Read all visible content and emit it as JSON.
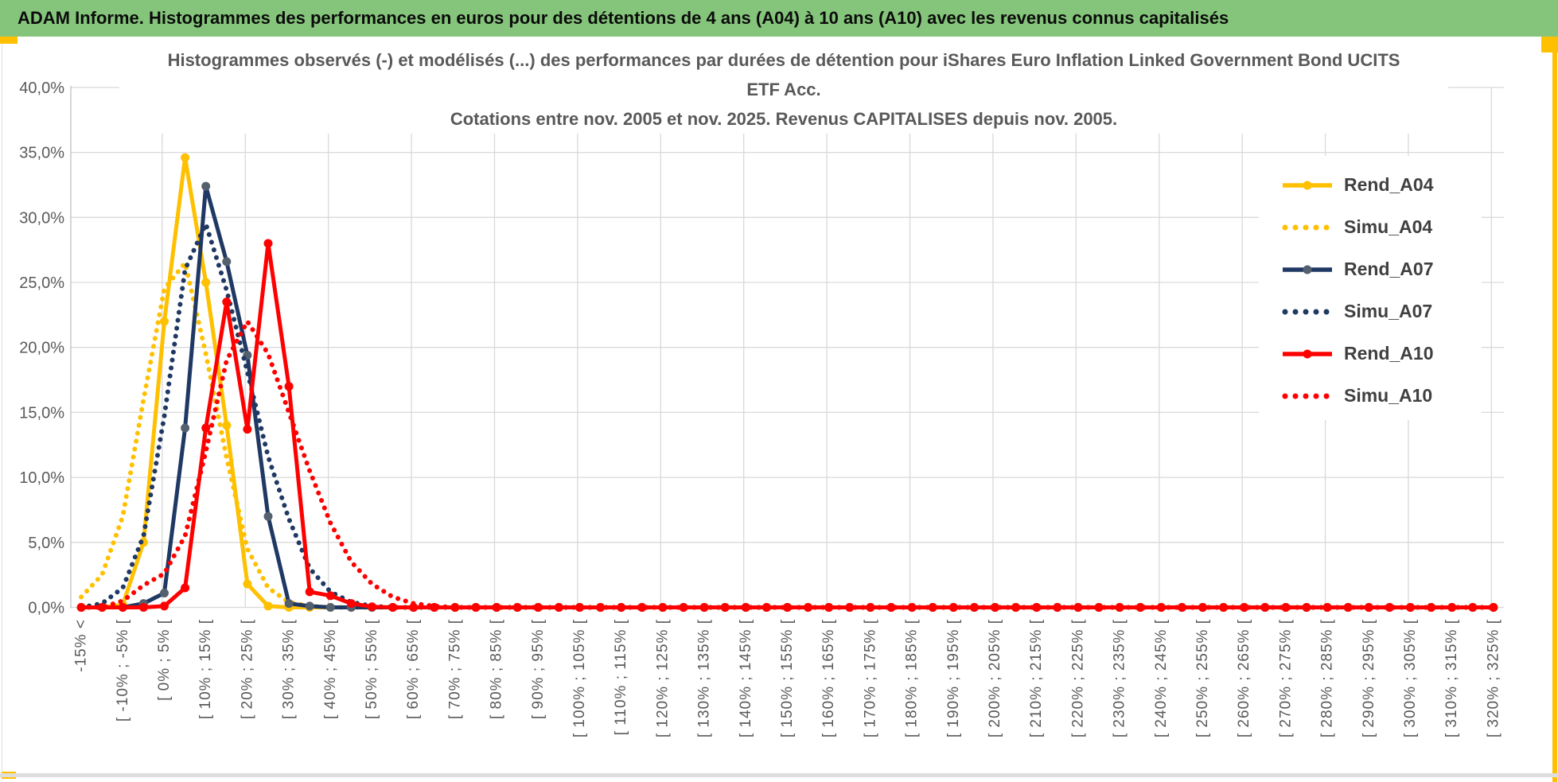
{
  "banner": {
    "text": "ADAM Informe. Histogrammes des performances en euros pour des détentions de 4 ans (A04) à 10 ans (A10) avec les revenus connus capitalisés"
  },
  "colors": {
    "banner_green": "#85C57B",
    "accent_gold": "#FFC000",
    "grid_gray": "#D9D9D9",
    "axis_gray": "#BFBFBF",
    "label_gray": "#595959",
    "legend_text": "#404040",
    "series_gold": "#FFC000",
    "series_navy": "#1F3864",
    "series_red": "#FF0000"
  },
  "chart_data": {
    "type": "line",
    "title_line1": "Histogrammes observés (-) et modélisés (...) des performances par durées de détention pour iShares Euro Inflation Linked Government Bond UCITS",
    "title_line2": "ETF Acc.",
    "title_line3": "Cotations entre nov. 2005 et nov. 2025. Revenus CAPITALISES depuis nov. 2005.",
    "grid": true,
    "legend_position": "right-inside",
    "ylim": [
      0,
      40
    ],
    "y_ticks": [
      "0,0%",
      "5,0%",
      "10,0%",
      "15,0%",
      "20,0%",
      "25,0%",
      "30,0%",
      "35,0%",
      "40,0%"
    ],
    "n_categories": 69,
    "x_tick_every": 2,
    "x_tick_labels": [
      "-15% <",
      "[ -10% ; -5% [",
      "[ 0% ; 5% [",
      "[ 10% ; 15% [",
      "[ 20% ; 25% [",
      "[ 30% ; 35% [",
      "[ 40% ; 45% [",
      "[ 50% ; 55% [",
      "[ 60% ; 65% [",
      "[ 70% ; 75% [",
      "[ 80% ; 85% [",
      "[ 90% ; 95% [",
      "[ 100% ; 105% [",
      "[ 110% ; 115% [",
      "[ 120% ; 125% [",
      "[ 130% ; 135% [",
      "[ 140% ; 145% [",
      "[ 150% ; 155% [",
      "[ 160% ; 165% [",
      "[ 170% ; 175% [",
      "[ 180% ; 185% [",
      "[ 190% ; 195% [",
      "[ 200% ; 205% [",
      "[ 210% ; 215% [",
      "[ 220% ; 225% [",
      "[ 230% ; 235% [",
      "[ 240% ; 245% [",
      "[ 250% ; 255% [",
      "[ 260% ; 265% [",
      "[ 270% ; 275% [",
      "[ 280% ; 285% [",
      "[ 290% ; 295% [",
      "[ 300% ; 305% [",
      "[ 310% ; 315% [",
      "[ 320% ; 325% ["
    ],
    "series": [
      {
        "name": "Rend_A04",
        "style": "solid",
        "color": "#FFC000",
        "marker_color": "#FFC000",
        "values": [
          0,
          0,
          0.2,
          5,
          22,
          34.6,
          25,
          14,
          1.8,
          0.1
        ]
      },
      {
        "name": "Simu_A04",
        "style": "dotted",
        "color": "#FFC000",
        "values": [
          0.8,
          2.5,
          7,
          16,
          24.5,
          26.5,
          19.5,
          11.5,
          4.5,
          1.5,
          0.4,
          0.1
        ]
      },
      {
        "name": "Rend_A07",
        "style": "solid",
        "color": "#1F3864",
        "marker_color": "#55606E",
        "values": [
          0,
          0,
          0,
          0.3,
          1.1,
          13.8,
          32.4,
          26.6,
          19.4,
          7,
          0.3,
          0.1
        ]
      },
      {
        "name": "Simu_A07",
        "style": "dotted",
        "color": "#1F3864",
        "values": [
          0,
          0.3,
          1.5,
          5.5,
          14.7,
          26,
          29.5,
          24.4,
          18.1,
          11.6,
          6.8,
          3,
          1.2,
          0.4,
          0.1
        ]
      },
      {
        "name": "Rend_A10",
        "style": "solid",
        "color": "#FF0000",
        "marker_color": "#FF0000",
        "values": [
          0,
          0,
          0,
          0,
          0.1,
          1.5,
          13.8,
          23.5,
          13.7,
          28,
          17,
          1.2,
          0.9,
          0.3,
          0.05
        ]
      },
      {
        "name": "Simu_A10",
        "style": "dotted",
        "color": "#FF0000",
        "values": [
          0,
          0,
          0.5,
          1.7,
          2.6,
          5.5,
          12,
          19,
          22,
          19.5,
          15,
          10.5,
          6.5,
          3.5,
          1.8,
          0.8,
          0.3,
          0.1
        ]
      }
    ]
  }
}
